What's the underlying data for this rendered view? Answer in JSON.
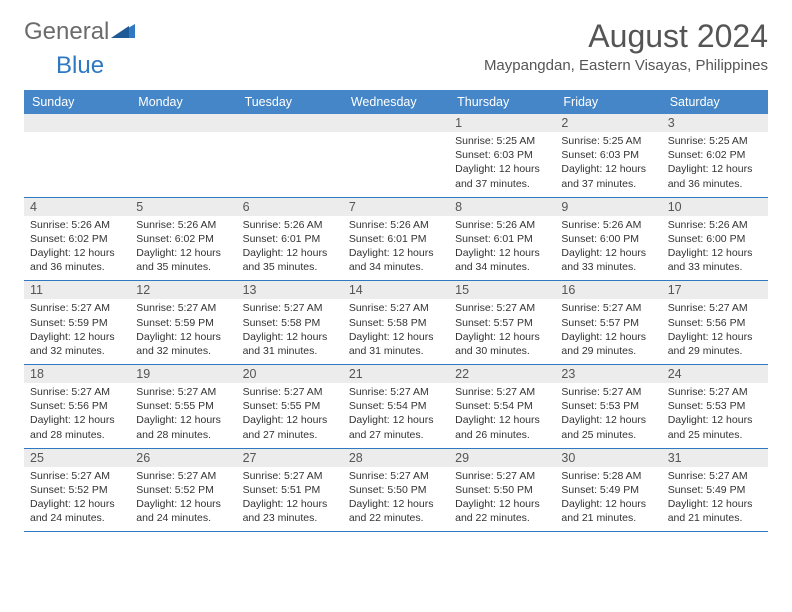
{
  "logo": {
    "text1": "General",
    "text2": "Blue"
  },
  "title": "August 2024",
  "subtitle": "Maypangdan, Eastern Visayas, Philippines",
  "colors": {
    "header_bg": "#4486c7",
    "header_text": "#ffffff",
    "daynum_bg": "#ececec",
    "border": "#2f79c3",
    "text": "#333333",
    "title_text": "#555555"
  },
  "dayNames": [
    "Sunday",
    "Monday",
    "Tuesday",
    "Wednesday",
    "Thursday",
    "Friday",
    "Saturday"
  ],
  "weeks": [
    [
      {
        "num": "",
        "sunrise": "",
        "sunset": "",
        "daylight": ""
      },
      {
        "num": "",
        "sunrise": "",
        "sunset": "",
        "daylight": ""
      },
      {
        "num": "",
        "sunrise": "",
        "sunset": "",
        "daylight": ""
      },
      {
        "num": "",
        "sunrise": "",
        "sunset": "",
        "daylight": ""
      },
      {
        "num": "1",
        "sunrise": "Sunrise: 5:25 AM",
        "sunset": "Sunset: 6:03 PM",
        "daylight": "Daylight: 12 hours and 37 minutes."
      },
      {
        "num": "2",
        "sunrise": "Sunrise: 5:25 AM",
        "sunset": "Sunset: 6:03 PM",
        "daylight": "Daylight: 12 hours and 37 minutes."
      },
      {
        "num": "3",
        "sunrise": "Sunrise: 5:25 AM",
        "sunset": "Sunset: 6:02 PM",
        "daylight": "Daylight: 12 hours and 36 minutes."
      }
    ],
    [
      {
        "num": "4",
        "sunrise": "Sunrise: 5:26 AM",
        "sunset": "Sunset: 6:02 PM",
        "daylight": "Daylight: 12 hours and 36 minutes."
      },
      {
        "num": "5",
        "sunrise": "Sunrise: 5:26 AM",
        "sunset": "Sunset: 6:02 PM",
        "daylight": "Daylight: 12 hours and 35 minutes."
      },
      {
        "num": "6",
        "sunrise": "Sunrise: 5:26 AM",
        "sunset": "Sunset: 6:01 PM",
        "daylight": "Daylight: 12 hours and 35 minutes."
      },
      {
        "num": "7",
        "sunrise": "Sunrise: 5:26 AM",
        "sunset": "Sunset: 6:01 PM",
        "daylight": "Daylight: 12 hours and 34 minutes."
      },
      {
        "num": "8",
        "sunrise": "Sunrise: 5:26 AM",
        "sunset": "Sunset: 6:01 PM",
        "daylight": "Daylight: 12 hours and 34 minutes."
      },
      {
        "num": "9",
        "sunrise": "Sunrise: 5:26 AM",
        "sunset": "Sunset: 6:00 PM",
        "daylight": "Daylight: 12 hours and 33 minutes."
      },
      {
        "num": "10",
        "sunrise": "Sunrise: 5:26 AM",
        "sunset": "Sunset: 6:00 PM",
        "daylight": "Daylight: 12 hours and 33 minutes."
      }
    ],
    [
      {
        "num": "11",
        "sunrise": "Sunrise: 5:27 AM",
        "sunset": "Sunset: 5:59 PM",
        "daylight": "Daylight: 12 hours and 32 minutes."
      },
      {
        "num": "12",
        "sunrise": "Sunrise: 5:27 AM",
        "sunset": "Sunset: 5:59 PM",
        "daylight": "Daylight: 12 hours and 32 minutes."
      },
      {
        "num": "13",
        "sunrise": "Sunrise: 5:27 AM",
        "sunset": "Sunset: 5:58 PM",
        "daylight": "Daylight: 12 hours and 31 minutes."
      },
      {
        "num": "14",
        "sunrise": "Sunrise: 5:27 AM",
        "sunset": "Sunset: 5:58 PM",
        "daylight": "Daylight: 12 hours and 31 minutes."
      },
      {
        "num": "15",
        "sunrise": "Sunrise: 5:27 AM",
        "sunset": "Sunset: 5:57 PM",
        "daylight": "Daylight: 12 hours and 30 minutes."
      },
      {
        "num": "16",
        "sunrise": "Sunrise: 5:27 AM",
        "sunset": "Sunset: 5:57 PM",
        "daylight": "Daylight: 12 hours and 29 minutes."
      },
      {
        "num": "17",
        "sunrise": "Sunrise: 5:27 AM",
        "sunset": "Sunset: 5:56 PM",
        "daylight": "Daylight: 12 hours and 29 minutes."
      }
    ],
    [
      {
        "num": "18",
        "sunrise": "Sunrise: 5:27 AM",
        "sunset": "Sunset: 5:56 PM",
        "daylight": "Daylight: 12 hours and 28 minutes."
      },
      {
        "num": "19",
        "sunrise": "Sunrise: 5:27 AM",
        "sunset": "Sunset: 5:55 PM",
        "daylight": "Daylight: 12 hours and 28 minutes."
      },
      {
        "num": "20",
        "sunrise": "Sunrise: 5:27 AM",
        "sunset": "Sunset: 5:55 PM",
        "daylight": "Daylight: 12 hours and 27 minutes."
      },
      {
        "num": "21",
        "sunrise": "Sunrise: 5:27 AM",
        "sunset": "Sunset: 5:54 PM",
        "daylight": "Daylight: 12 hours and 27 minutes."
      },
      {
        "num": "22",
        "sunrise": "Sunrise: 5:27 AM",
        "sunset": "Sunset: 5:54 PM",
        "daylight": "Daylight: 12 hours and 26 minutes."
      },
      {
        "num": "23",
        "sunrise": "Sunrise: 5:27 AM",
        "sunset": "Sunset: 5:53 PM",
        "daylight": "Daylight: 12 hours and 25 minutes."
      },
      {
        "num": "24",
        "sunrise": "Sunrise: 5:27 AM",
        "sunset": "Sunset: 5:53 PM",
        "daylight": "Daylight: 12 hours and 25 minutes."
      }
    ],
    [
      {
        "num": "25",
        "sunrise": "Sunrise: 5:27 AM",
        "sunset": "Sunset: 5:52 PM",
        "daylight": "Daylight: 12 hours and 24 minutes."
      },
      {
        "num": "26",
        "sunrise": "Sunrise: 5:27 AM",
        "sunset": "Sunset: 5:52 PM",
        "daylight": "Daylight: 12 hours and 24 minutes."
      },
      {
        "num": "27",
        "sunrise": "Sunrise: 5:27 AM",
        "sunset": "Sunset: 5:51 PM",
        "daylight": "Daylight: 12 hours and 23 minutes."
      },
      {
        "num": "28",
        "sunrise": "Sunrise: 5:27 AM",
        "sunset": "Sunset: 5:50 PM",
        "daylight": "Daylight: 12 hours and 22 minutes."
      },
      {
        "num": "29",
        "sunrise": "Sunrise: 5:27 AM",
        "sunset": "Sunset: 5:50 PM",
        "daylight": "Daylight: 12 hours and 22 minutes."
      },
      {
        "num": "30",
        "sunrise": "Sunrise: 5:28 AM",
        "sunset": "Sunset: 5:49 PM",
        "daylight": "Daylight: 12 hours and 21 minutes."
      },
      {
        "num": "31",
        "sunrise": "Sunrise: 5:27 AM",
        "sunset": "Sunset: 5:49 PM",
        "daylight": "Daylight: 12 hours and 21 minutes."
      }
    ]
  ]
}
